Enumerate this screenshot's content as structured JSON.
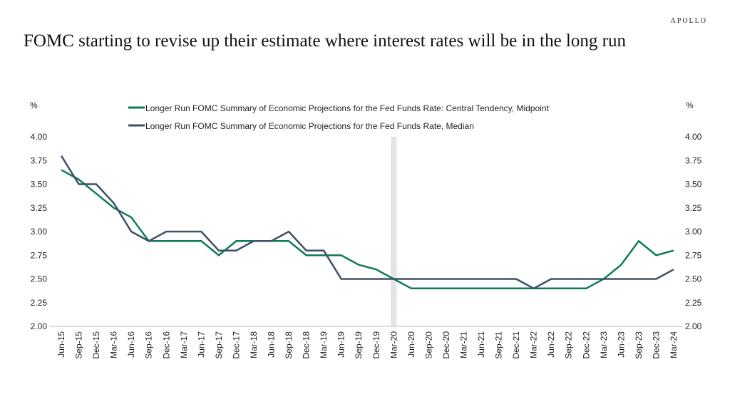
{
  "brand": "APOLLO",
  "title": "FOMC starting to revise up their estimate where interest rates will be in the long run",
  "chart_data": {
    "type": "line",
    "left_unit": "%",
    "right_unit": "%",
    "ylim": [
      2.0,
      4.0
    ],
    "yticks": [
      "4.00",
      "3.75",
      "3.50",
      "3.25",
      "3.00",
      "2.75",
      "2.50",
      "2.25",
      "2.00"
    ],
    "legend_placement": "top",
    "grid": false,
    "shaded_period": "Mar-20",
    "shade_color": "#e3e3e3",
    "categories": [
      "Jun-15",
      "Sep-15",
      "Dec-15",
      "Mar-16",
      "Jun-16",
      "Sep-16",
      "Dec-16",
      "Mar-17",
      "Jun-17",
      "Sep-17",
      "Dec-17",
      "Mar-18",
      "Jun-18",
      "Sep-18",
      "Dec-18",
      "Mar-19",
      "Jun-19",
      "Sep-19",
      "Dec-19",
      "Mar-20",
      "Jun-20",
      "Sep-20",
      "Dec-20",
      "Mar-21",
      "Jun-21",
      "Sep-21",
      "Dec-21",
      "Mar-22",
      "Jun-22",
      "Sep-22",
      "Dec-22",
      "Mar-23",
      "Jun-23",
      "Sep-23",
      "Dec-23",
      "Mar-24"
    ],
    "series": [
      {
        "name": "Longer Run FOMC Summary of Economic Projections for the Fed Funds Rate: Central Tendency, Midpoint",
        "color": "#0e7a5a",
        "values": [
          3.65,
          3.55,
          3.4,
          3.25,
          3.15,
          2.9,
          2.9,
          2.9,
          2.9,
          2.75,
          2.9,
          2.9,
          2.9,
          2.9,
          2.75,
          2.75,
          2.75,
          2.65,
          2.6,
          2.5,
          2.4,
          2.4,
          2.4,
          2.4,
          2.4,
          2.4,
          2.4,
          2.4,
          2.4,
          2.4,
          2.4,
          2.5,
          2.65,
          2.9,
          2.75,
          2.8
        ]
      },
      {
        "name": "Longer Run FOMC Summary of Economic Projections for the Fed Funds Rate, Median",
        "color": "#3d5068",
        "values": [
          3.8,
          3.5,
          3.5,
          3.3,
          3.0,
          2.9,
          3.0,
          3.0,
          3.0,
          2.8,
          2.8,
          2.9,
          2.9,
          3.0,
          2.8,
          2.8,
          2.5,
          2.5,
          2.5,
          2.5,
          2.5,
          2.5,
          2.5,
          2.5,
          2.5,
          2.5,
          2.5,
          2.4,
          2.5,
          2.5,
          2.5,
          2.5,
          2.5,
          2.5,
          2.5,
          2.6
        ]
      }
    ]
  }
}
